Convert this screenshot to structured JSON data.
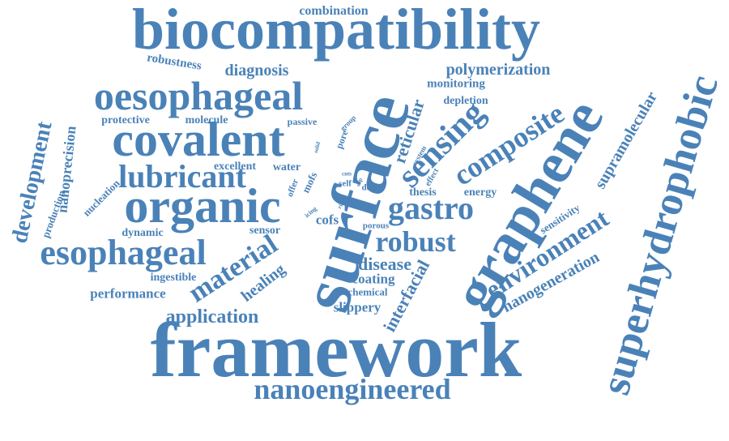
{
  "cloud": {
    "accent_color": "#4a82b8",
    "words": [
      "biocompatibility",
      "framework",
      "surface",
      "graphene",
      "covalent",
      "oesophageal",
      "organic",
      "superhydrophobic",
      "esophageal",
      "sensing",
      "composite",
      "nanoengineered",
      "lubricant",
      "gastro",
      "robust",
      "environment",
      "material",
      "supramolecular",
      "application",
      "polymerization",
      "diagnosis",
      "disease",
      "development",
      "reticular",
      "nanoprecision",
      "interfacial",
      "nanogeneration",
      "healing",
      "coating",
      "slippery",
      "combination",
      "robustness",
      "monitoring",
      "depletion",
      "protective",
      "molecule",
      "passive",
      "group",
      "pore",
      "excellent",
      "water",
      "offer",
      "mofs",
      "solid",
      "cnts",
      "self",
      "rich",
      "slip",
      "delay",
      "effect",
      "system",
      "thesis",
      "energy",
      "production",
      "nucleation",
      "dynamic",
      "sensor",
      "icing",
      "cofs",
      "porous",
      "sensitivity",
      "ingestible",
      "chemical",
      "performance"
    ]
  }
}
